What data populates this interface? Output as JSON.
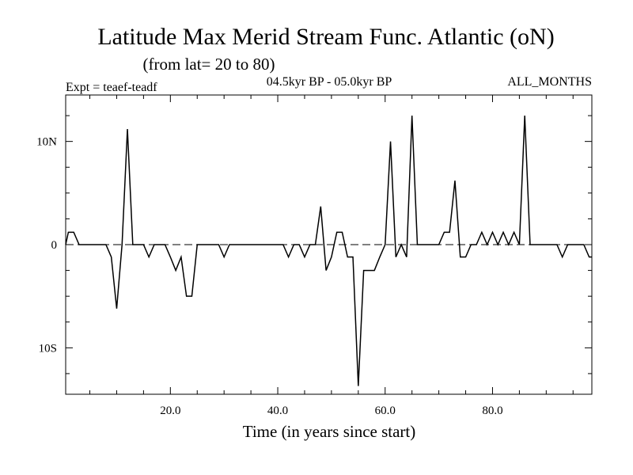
{
  "chart_data": {
    "type": "line",
    "title": "Latitude Max Merid Stream Func. Atlantic (oN)",
    "subtitle": "(from lat= 20 to 80)",
    "experiment": "Expt = teaef-teadf",
    "period": "04.5kyr BP - 05.0kyr BP",
    "months": "ALL_MONTHS",
    "xlabel": "Time (in years since start)",
    "ylabel": "",
    "xlim": [
      0.5,
      98.5
    ],
    "ylim": [
      -14.5,
      14.5
    ],
    "x_ticks": [
      {
        "value": 20,
        "label": "20.0"
      },
      {
        "value": 40,
        "label": "40.0"
      },
      {
        "value": 60,
        "label": "60.0"
      },
      {
        "value": 80,
        "label": "80.0"
      }
    ],
    "y_ticks": [
      {
        "value": 10,
        "label": "10N"
      },
      {
        "value": 0,
        "label": "0"
      },
      {
        "value": -10,
        "label": "10S"
      }
    ],
    "zero_line": true,
    "series": [
      {
        "name": "teaef-teadf",
        "color": "#000000",
        "x": [
          0.5,
          1,
          2,
          3,
          4,
          5,
          6,
          7,
          8,
          9,
          10,
          11,
          12,
          13,
          14,
          15,
          16,
          17,
          18,
          19,
          20,
          21,
          22,
          23,
          24,
          25,
          26,
          27,
          28,
          29,
          30,
          31,
          32,
          33,
          34,
          35,
          36,
          37,
          38,
          39,
          40,
          41,
          42,
          43,
          44,
          45,
          46,
          47,
          48,
          49,
          50,
          51,
          52,
          53,
          54,
          55,
          56,
          57,
          58,
          59,
          60,
          61,
          62,
          63,
          64,
          65,
          66,
          67,
          68,
          69,
          70,
          71,
          72,
          73,
          74,
          75,
          76,
          77,
          78,
          79,
          80,
          81,
          82,
          83,
          84,
          85,
          86,
          87,
          88,
          89,
          90,
          91,
          92,
          93,
          94,
          95,
          96,
          97,
          98,
          98.5
        ],
        "y": [
          0,
          1.2,
          1.2,
          0,
          0,
          0,
          0,
          0,
          0,
          -1.2,
          -6.2,
          0,
          11.2,
          0,
          0,
          0,
          -1.2,
          0,
          0,
          0,
          -1.2,
          -2.5,
          -1.2,
          -5,
          -5,
          0,
          0,
          0,
          0,
          0,
          -1.2,
          0,
          0,
          0,
          0,
          0,
          0,
          0,
          0,
          0,
          0,
          0,
          -1.2,
          0,
          0,
          -1.2,
          0,
          0,
          3.7,
          -2.5,
          -1.2,
          1.2,
          1.2,
          -1.2,
          -1.2,
          -13.7,
          -2.5,
          -2.5,
          -2.5,
          -1.2,
          0,
          10,
          -1.2,
          0,
          -1.2,
          12.5,
          0,
          0,
          0,
          0,
          0,
          1.2,
          1.2,
          6.2,
          -1.2,
          -1.2,
          0,
          0,
          1.2,
          0,
          1.2,
          0,
          1.2,
          0,
          1.2,
          0,
          12.5,
          0,
          0,
          0,
          0,
          0,
          0,
          -1.2,
          0,
          0,
          0,
          0,
          -1.2,
          -1.2
        ]
      }
    ]
  }
}
